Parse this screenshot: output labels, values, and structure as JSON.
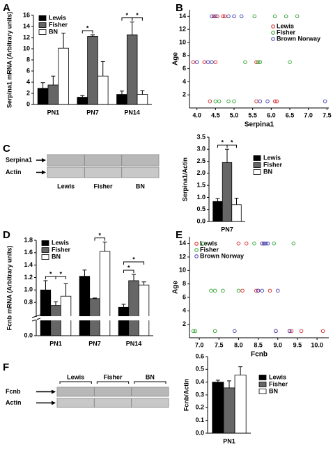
{
  "chart_data": [
    {
      "type": "bar",
      "panel": "A",
      "ylabel": "Serpina1 mRNA (Arbitrary units)",
      "categories": [
        "PN1",
        "PN7",
        "PN14"
      ],
      "series": [
        {
          "name": "Lewis",
          "color": "#000000",
          "values": [
            2.9,
            1.3,
            1.8
          ],
          "errors": [
            1.0,
            0.3,
            0.6
          ]
        },
        {
          "name": "Fisher",
          "color": "#666666",
          "values": [
            3.5,
            12.2,
            12.5
          ],
          "errors": [
            1.6,
            0.3,
            2.3
          ]
        },
        {
          "name": "BN",
          "color": "#ffffff",
          "values": [
            10.1,
            5.1,
            1.8
          ],
          "errors": [
            2.7,
            2.6,
            0.7
          ]
        }
      ],
      "ylim": [
        0,
        16
      ],
      "yticks": [
        0,
        2,
        4,
        6,
        8,
        10,
        12,
        14,
        16
      ],
      "legend": "upper left",
      "annotations": [
        "*",
        "*",
        "*"
      ]
    },
    {
      "type": "scatter",
      "panel": "B",
      "xlabel": "Serpina1",
      "ylabel": "Age",
      "series": [
        {
          "name": "Lewis",
          "color": "#d62728",
          "x": [
            4.45,
            4.55,
            4.7,
            4.75,
            3.9,
            4.2,
            4.5,
            5.6,
            4.35,
            5.6,
            6.1,
            6.15
          ],
          "y": [
            14,
            14,
            14,
            14,
            7,
            7,
            7,
            7,
            1,
            1,
            1,
            1
          ]
        },
        {
          "name": "Fisher",
          "color": "#2ca02c",
          "x": [
            5.55,
            6.1,
            6.4,
            6.7,
            5.3,
            5.65,
            5.7,
            6.5,
            4.5,
            4.6,
            4.85,
            5.0
          ],
          "y": [
            14,
            14,
            14,
            14,
            7,
            7,
            7,
            7,
            1,
            1,
            1,
            1
          ]
        },
        {
          "name": "Brown Norway",
          "color": "#3b3bb3",
          "x": [
            4.4,
            4.5,
            4.85,
            5.0,
            5.2,
            4.0,
            4.3,
            4.4,
            5.7,
            5.9,
            7.45
          ],
          "y": [
            14,
            14,
            14,
            14,
            14,
            7,
            7,
            7,
            1,
            1,
            1
          ]
        }
      ],
      "xlim": [
        3.8,
        7.55
      ],
      "xticks": [
        {
          "value": 4,
          "label": "4.0"
        },
        4.5,
        {
          "value": 5,
          "label": "5.0"
        },
        5.5,
        {
          "value": 6,
          "label": "6.0"
        },
        6.5,
        {
          "value": 7,
          "label": "7.0"
        },
        7.5
      ],
      "ylim": [
        0,
        15
      ],
      "yticks": [
        2,
        4,
        6,
        8,
        10,
        12,
        14
      ]
    },
    {
      "type": "blot",
      "panel": "C",
      "rows": [
        "Serpina1",
        "Actin"
      ],
      "lanes": [
        "Lewis",
        "Fisher",
        "BN"
      ]
    },
    {
      "type": "bar",
      "ylabel": "Serpina1/Actin",
      "categories": [
        "PN7"
      ],
      "series": [
        {
          "name": "Lewis",
          "color": "#000000",
          "values": [
            0.83
          ],
          "errors": [
            0.12
          ]
        },
        {
          "name": "Fisher",
          "color": "#666666",
          "values": [
            2.45
          ],
          "errors": [
            0.55
          ]
        },
        {
          "name": "BN",
          "color": "#ffffff",
          "values": [
            0.7
          ],
          "errors": [
            0.27
          ]
        }
      ],
      "ylim": [
        0,
        3.5
      ],
      "yticks": [
        {
          "value": 0,
          "label": "0.0"
        },
        0.5,
        {
          "value": 1,
          "label": "1.0"
        },
        1.5,
        {
          "value": 2,
          "label": "2.0"
        },
        2.5,
        {
          "value": 3,
          "label": "3.0"
        },
        3.5
      ],
      "legend": "right",
      "annotations": [
        "*",
        "*"
      ]
    },
    {
      "type": "bar",
      "panel": "D",
      "ylabel": "Fcnb mRNA (Arbitrary units)",
      "categories": [
        "PN1",
        "PN7",
        "PN14"
      ],
      "series": [
        {
          "name": "Lewis",
          "color": "#000000",
          "values": [
            1.0,
            1.22,
            0.72
          ],
          "errors": [
            0.15,
            0.1,
            0.05
          ]
        },
        {
          "name": "Fisher",
          "color": "#666666",
          "values": [
            0.75,
            0.86,
            1.15
          ],
          "errors": [
            0.06,
            0.01,
            0.1
          ]
        },
        {
          "name": "BN",
          "color": "#ffffff",
          "values": [
            0.9,
            1.62,
            1.08
          ],
          "errors": [
            0.2,
            0.15,
            0.05
          ]
        }
      ],
      "ylim": [
        0,
        1.8
      ],
      "axis_break": [
        0.1,
        0.6
      ],
      "yticks": [
        {
          "value": 0,
          "label": "0.0"
        },
        0.8,
        {
          "value": 1,
          "label": "1.0"
        },
        1.2,
        1.4,
        1.6,
        1.8
      ],
      "legend": "upper left",
      "annotations": [
        "*",
        "*",
        "*",
        "*",
        "*"
      ]
    },
    {
      "type": "scatter",
      "panel": "E",
      "xlabel": "Fcnb",
      "ylabel": "Age",
      "series": [
        {
          "name": "Lewis",
          "color": "#d62728",
          "x": [
            8.0,
            8.2,
            8.6,
            8.65,
            8.1,
            8.45,
            8.5,
            8.8,
            8.95,
            9.3,
            9.35,
            9.6,
            10.15
          ],
          "y": [
            14,
            14,
            14,
            14,
            7,
            7,
            7,
            7,
            1,
            1,
            1,
            1,
            1
          ]
        },
        {
          "name": "Fisher",
          "color": "#2ca02c",
          "x": [
            7.1,
            8.4,
            8.9,
            9.4,
            7.3,
            7.4,
            7.6,
            8.0,
            6.85,
            6.9,
            7.4
          ],
          "y": [
            14,
            14,
            14,
            14,
            7,
            7,
            7,
            7,
            1,
            1,
            1
          ]
        },
        {
          "name": "Brown Norway",
          "color": "#3b3bb3",
          "x": [
            8.6,
            8.65,
            8.7,
            8.75,
            8.5,
            8.6,
            9.0,
            7.9,
            8.95,
            9.3
          ],
          "y": [
            14,
            14,
            14,
            14,
            7,
            7,
            7,
            1,
            1,
            1
          ]
        }
      ],
      "xlim": [
        6.75,
        10.3
      ],
      "xticks": [
        {
          "value": 7,
          "label": "7.0"
        },
        7.5,
        {
          "value": 8,
          "label": "8.0"
        },
        8.5,
        {
          "value": 9,
          "label": "9.0"
        },
        9.5,
        {
          "value": 10,
          "label": "10.0"
        }
      ],
      "ylim": [
        0,
        15
      ],
      "yticks": [
        2,
        4,
        6,
        8,
        10,
        12,
        14
      ]
    },
    {
      "type": "blot",
      "panel": "F",
      "rows": [
        "Fcnb",
        "Actin"
      ],
      "lanes": [
        "Lewis",
        "Fisher",
        "BN"
      ]
    },
    {
      "type": "bar",
      "ylabel": "Fcnb/Actin",
      "categories": [
        "PN1"
      ],
      "series": [
        {
          "name": "Lewis",
          "color": "#000000",
          "values": [
            0.4
          ],
          "errors": [
            0.015
          ]
        },
        {
          "name": "Fisher",
          "color": "#666666",
          "values": [
            0.355
          ],
          "errors": [
            0.055
          ]
        },
        {
          "name": "BN",
          "color": "#ffffff",
          "values": [
            0.455
          ],
          "errors": [
            0.065
          ]
        }
      ],
      "ylim": [
        0,
        0.6
      ],
      "yticks": [
        {
          "value": 0,
          "label": "0.0"
        },
        0.1,
        0.2,
        0.3,
        0.4,
        0.5,
        0.6
      ],
      "legend": "right"
    }
  ]
}
